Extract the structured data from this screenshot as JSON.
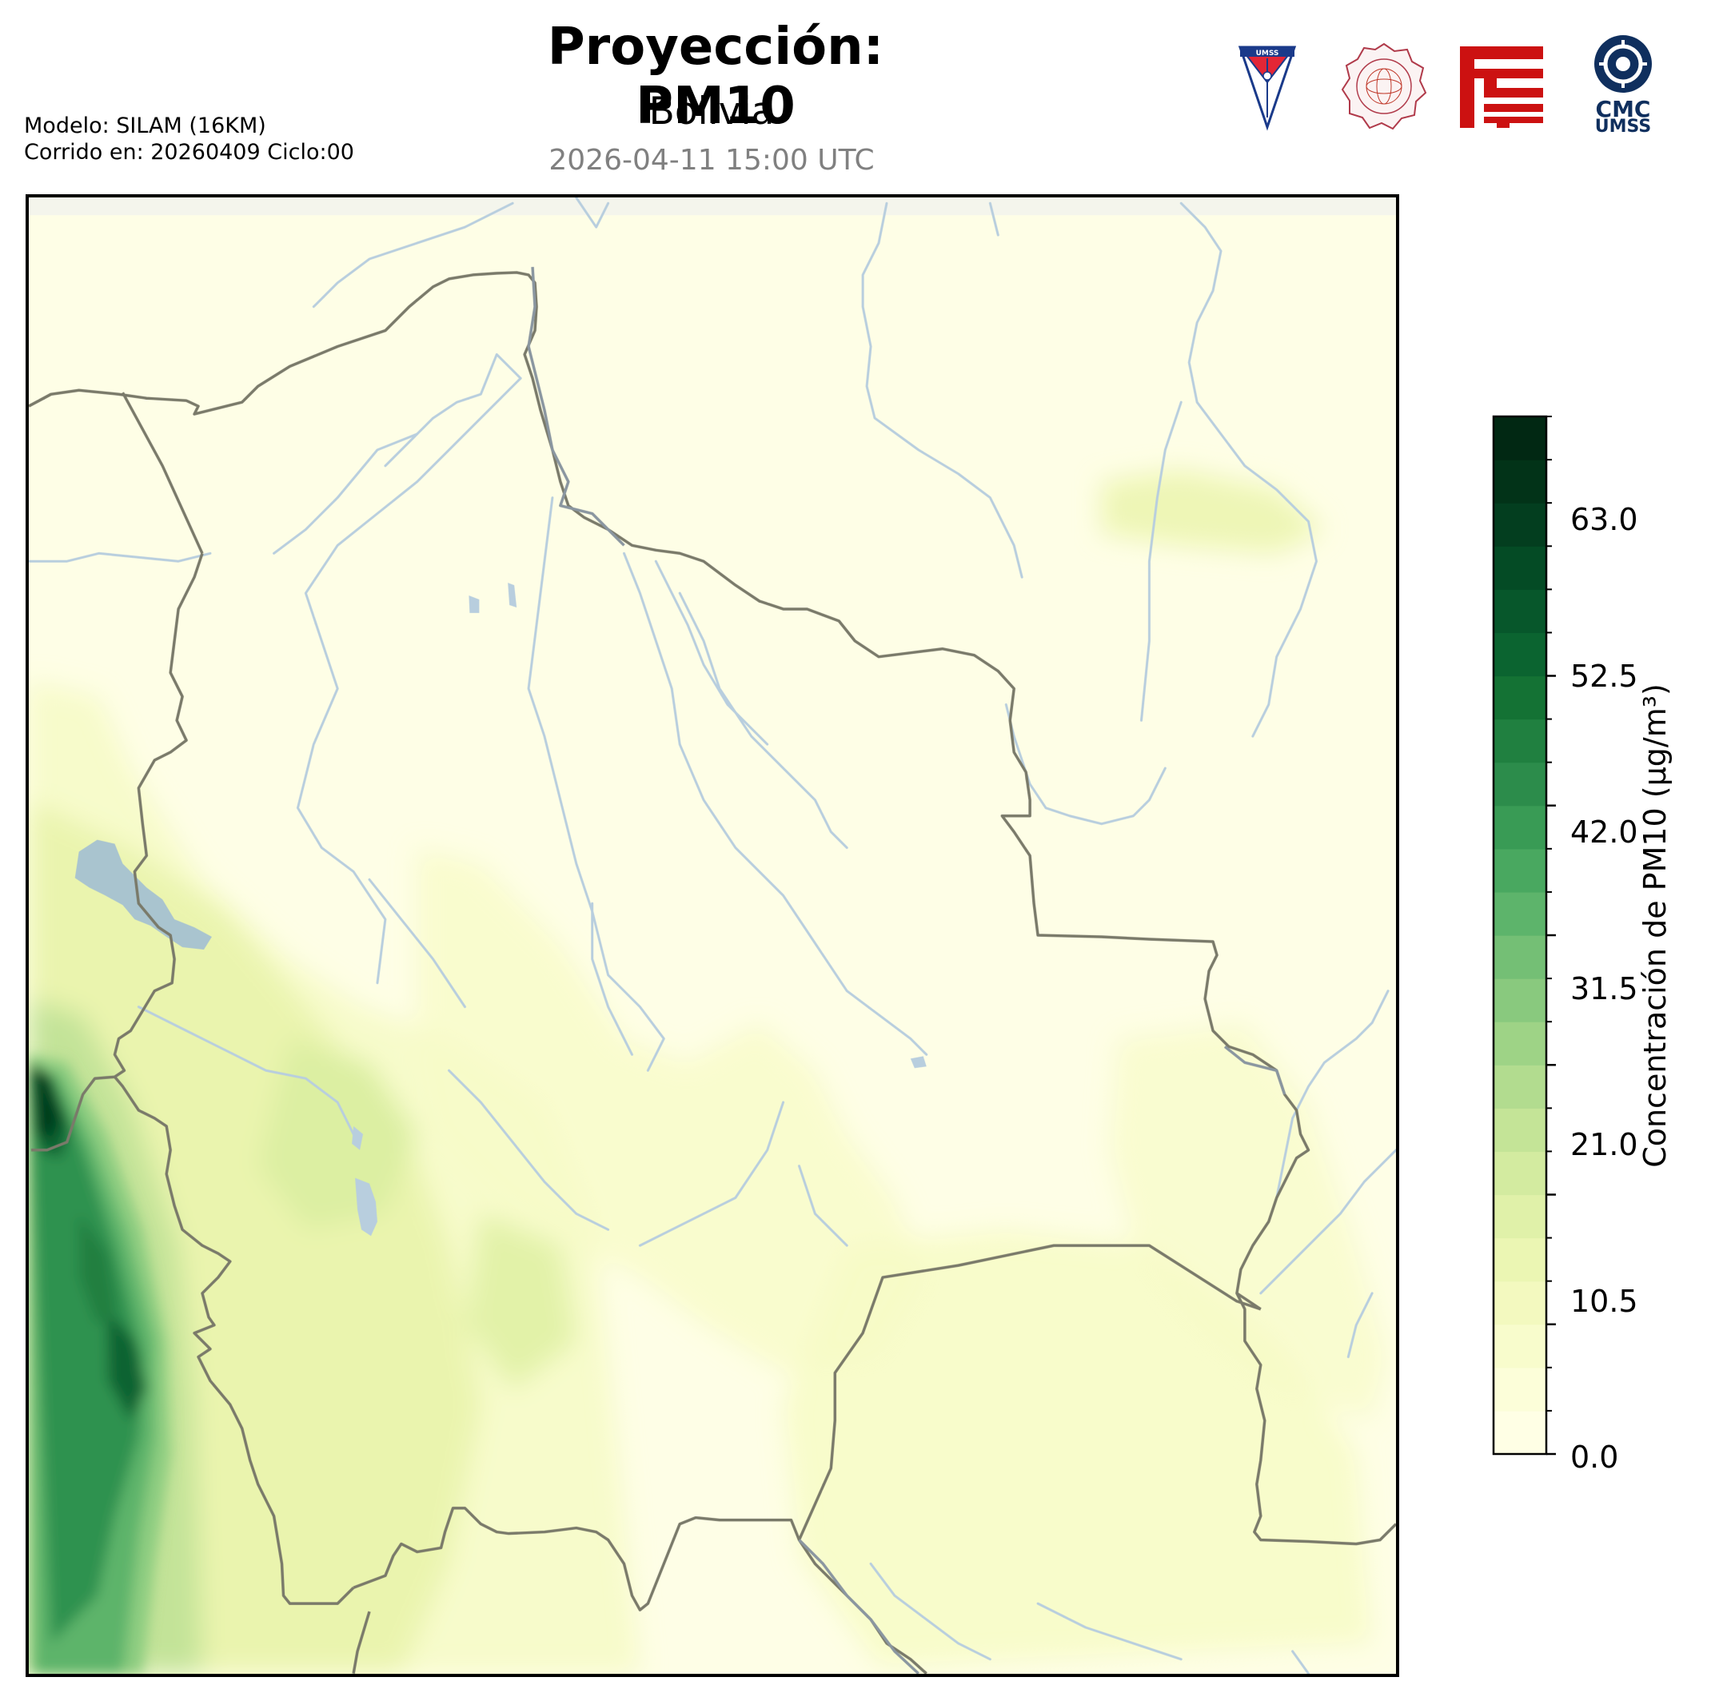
{
  "header": {
    "title": "Proyección: PM10",
    "subtitle": "Bolivia",
    "datetime": "2026-04-11 15:00 UTC",
    "model": "Modelo: SILAM (16KM)",
    "run": "Corrido en: 20260409 Ciclo:00"
  },
  "logos": [
    {
      "name": "umss-shield-logo",
      "text": "UMSS",
      "color": "#1a3a8a",
      "accent": "#e32636"
    },
    {
      "name": "departamento-fisica-seal",
      "text": "DEPARTAMENTO DE FÍSICA",
      "color": "#b03a4a"
    },
    {
      "name": "red-geometric-logo",
      "color": "#cc1111"
    },
    {
      "name": "cmc-umss-logo",
      "line1": "CMC",
      "line2": "UMSS",
      "color": "#0f2f5e"
    }
  ],
  "colorbar": {
    "label": "Concentración de PM10 (µg/m³)",
    "ticks": [
      "0.0",
      "10.5",
      "21.0",
      "31.5",
      "42.0",
      "52.5",
      "63.0"
    ],
    "min": 0,
    "max": 70,
    "colors": [
      "#ffffe5",
      "#fcfed9",
      "#f8fccc",
      "#f3f9bf",
      "#ebf6b3",
      "#e0f1a9",
      "#d3eba0",
      "#c4e497",
      "#b2dc8f",
      "#9ed386",
      "#89c97e",
      "#74bf75",
      "#5db46b",
      "#49a860",
      "#399b55",
      "#2c8c4b",
      "#208040",
      "#147234",
      "#0b6430",
      "#07572b",
      "#044b25",
      "#033e1f",
      "#023318",
      "#012813"
    ]
  },
  "map": {
    "variable": "PM10",
    "region": "Bolivia",
    "colors": {
      "background": "#fefee6",
      "border": "#7a7a6a",
      "river": "#b8cede",
      "lake": "#a9c4cf"
    }
  }
}
